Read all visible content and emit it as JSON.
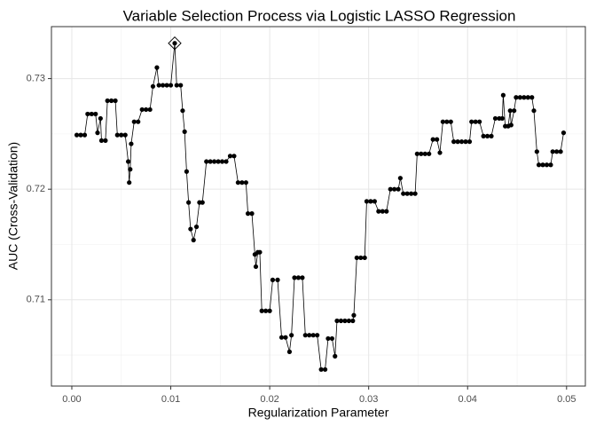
{
  "chart_data": {
    "type": "line",
    "title": "Variable Selection Process via Logistic LASSO Regression",
    "x_label": "Regularization Parameter",
    "y_label": "AUC (Cross-Validation)",
    "xlim": [
      -0.00206,
      0.0519
    ],
    "ylim": [
      0.7022,
      0.7347
    ],
    "xticks": [
      {
        "value": 0,
        "label": "0.00"
      },
      0.01,
      0.02,
      0.03,
      0.04,
      0.05
    ],
    "yticks": [
      0.71,
      0.72,
      0.73
    ],
    "x_minor_ticks": [
      0.005,
      0.015,
      0.025,
      0.035,
      0.045
    ],
    "y_minor_ticks": [
      0.705,
      0.715,
      0.725
    ],
    "grid": true,
    "x": [
      0.0005,
      0.0009,
      0.0013,
      0.0016,
      0.002,
      0.0024,
      0.0026,
      0.0029,
      0.003,
      0.0034,
      0.0036,
      0.004,
      0.0044,
      0.0046,
      0.005,
      0.0054,
      0.0057,
      0.0058,
      0.0059,
      0.006,
      0.0063,
      0.0067,
      0.0071,
      0.0075,
      0.0079,
      0.0082,
      0.0086,
      0.0088,
      0.0092,
      0.0096,
      0.01,
      0.0104,
      0.0106,
      0.011,
      0.0112,
      0.0114,
      0.0116,
      0.0118,
      0.012,
      0.0123,
      0.0126,
      0.0129,
      0.0132,
      0.0136,
      0.014,
      0.0144,
      0.0148,
      0.0152,
      0.0156,
      0.016,
      0.0164,
      0.0168,
      0.0172,
      0.0176,
      0.0178,
      0.0182,
      0.0185,
      0.0186,
      0.0188,
      0.019,
      0.0192,
      0.0196,
      0.02,
      0.0203,
      0.0208,
      0.0212,
      0.0216,
      0.022,
      0.0222,
      0.0225,
      0.0229,
      0.0233,
      0.0236,
      0.024,
      0.0244,
      0.0248,
      0.0252,
      0.0256,
      0.0259,
      0.0263,
      0.0266,
      0.0268,
      0.0272,
      0.0276,
      0.028,
      0.0284,
      0.0285,
      0.0288,
      0.0292,
      0.0296,
      0.0298,
      0.0302,
      0.0306,
      0.031,
      0.0314,
      0.0318,
      0.0322,
      0.0326,
      0.033,
      0.0332,
      0.0335,
      0.0339,
      0.0343,
      0.0347,
      0.0349,
      0.0353,
      0.0357,
      0.0361,
      0.0365,
      0.0369,
      0.0372,
      0.0375,
      0.0379,
      0.0383,
      0.0386,
      0.039,
      0.0394,
      0.0398,
      0.0402,
      0.0404,
      0.0408,
      0.0412,
      0.0416,
      0.042,
      0.0424,
      0.0428,
      0.0432,
      0.0435,
      0.0436,
      0.0438,
      0.0441,
      0.0443,
      0.0444,
      0.0447,
      0.0449,
      0.0453,
      0.0457,
      0.0461,
      0.0465,
      0.0467,
      0.047,
      0.0472,
      0.0476,
      0.048,
      0.0484,
      0.0486,
      0.049,
      0.0494,
      0.0497
    ],
    "series": [
      {
        "color": "#000000",
        "values": [
          0.7249,
          0.7249,
          0.7249,
          0.7268,
          0.7268,
          0.7268,
          0.7251,
          0.7264,
          0.7244,
          0.7244,
          0.728,
          0.728,
          0.728,
          0.7249,
          0.7249,
          0.7249,
          0.7225,
          0.7206,
          0.7218,
          0.7241,
          0.7261,
          0.7261,
          0.7272,
          0.7272,
          0.7272,
          0.7293,
          0.731,
          0.7294,
          0.7294,
          0.7294,
          0.7294,
          0.7332,
          0.7294,
          0.7294,
          0.7271,
          0.7252,
          0.7216,
          0.7188,
          0.7164,
          0.7154,
          0.7166,
          0.7188,
          0.7188,
          0.7225,
          0.7225,
          0.7225,
          0.7225,
          0.7225,
          0.7225,
          0.723,
          0.723,
          0.7206,
          0.7206,
          0.7206,
          0.7178,
          0.7178,
          0.7141,
          0.713,
          0.7143,
          0.7143,
          0.709,
          0.709,
          0.709,
          0.7118,
          0.7118,
          0.7066,
          0.7066,
          0.7053,
          0.7068,
          0.712,
          0.712,
          0.712,
          0.7068,
          0.7068,
          0.7068,
          0.7068,
          0.7037,
          0.7037,
          0.7065,
          0.7065,
          0.7049,
          0.7081,
          0.7081,
          0.7081,
          0.7081,
          0.7081,
          0.7086,
          0.7138,
          0.7138,
          0.7138,
          0.7189,
          0.7189,
          0.7189,
          0.718,
          0.718,
          0.718,
          0.72,
          0.72,
          0.72,
          0.721,
          0.7196,
          0.7196,
          0.7196,
          0.7196,
          0.7232,
          0.7232,
          0.7232,
          0.7232,
          0.7245,
          0.7245,
          0.7233,
          0.7261,
          0.7261,
          0.7261,
          0.7243,
          0.7243,
          0.7243,
          0.7243,
          0.7243,
          0.7261,
          0.7261,
          0.7261,
          0.7248,
          0.7248,
          0.7248,
          0.7264,
          0.7264,
          0.7264,
          0.7285,
          0.7257,
          0.7257,
          0.7271,
          0.7258,
          0.7271,
          0.7283,
          0.7283,
          0.7283,
          0.7283,
          0.7283,
          0.7271,
          0.7234,
          0.7222,
          0.7222,
          0.7222,
          0.7222,
          0.7234,
          0.7234,
          0.7234,
          0.7251
        ]
      }
    ],
    "highlight": {
      "x": 0.0104,
      "y": 0.7332
    }
  }
}
